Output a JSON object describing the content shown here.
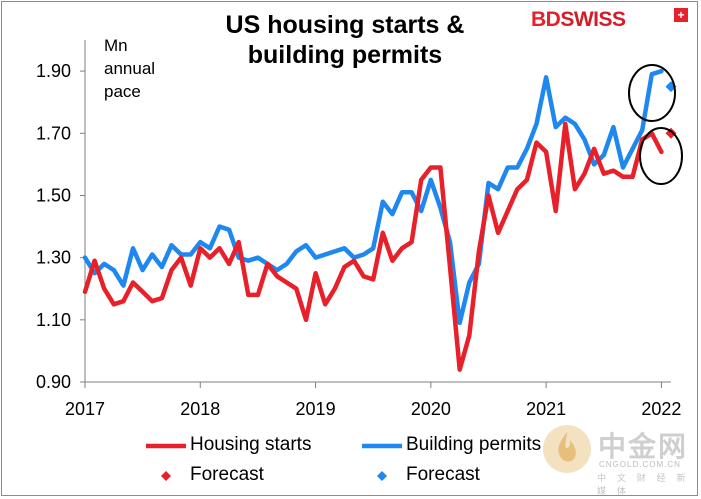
{
  "header": {
    "title_line1": "US housing starts &",
    "title_line2": "building permits",
    "unit_line1": "Mn",
    "unit_line2": "annual",
    "unit_line3": "pace"
  },
  "brand": {
    "bd": "BD",
    "swiss": "SWISS",
    "cross": "+"
  },
  "watermark": {
    "name": "中金网",
    "site": "CNGOLD.COM.CN",
    "tagline": "中 文 财 经 新 媒 体",
    "icon": "flame-coin-icon"
  },
  "colors": {
    "starts": "#e8202a",
    "permits": "#1e88f0",
    "brand": "#e8202a"
  },
  "chart_data": {
    "type": "line",
    "title": "US housing starts & building permits",
    "ylabel": "Mn annual pace",
    "ylim": [
      0.9,
      2.0
    ],
    "yticks": [
      "0.90",
      "1.10",
      "1.30",
      "1.50",
      "1.70",
      "1.90"
    ],
    "xticks": [
      "2017",
      "2018",
      "2019",
      "2020",
      "2021",
      "2022"
    ],
    "xlim": [
      "2017-01",
      "2022-02"
    ],
    "grid": false,
    "legend_position": "bottom",
    "series": [
      {
        "name": "Housing starts",
        "color": "#e8202a",
        "x": [
          "2017-01",
          "2017-02",
          "2017-03",
          "2017-04",
          "2017-05",
          "2017-06",
          "2017-07",
          "2017-08",
          "2017-09",
          "2017-10",
          "2017-11",
          "2017-12",
          "2018-01",
          "2018-02",
          "2018-03",
          "2018-04",
          "2018-05",
          "2018-06",
          "2018-07",
          "2018-08",
          "2018-09",
          "2018-10",
          "2018-11",
          "2018-12",
          "2019-01",
          "2019-02",
          "2019-03",
          "2019-04",
          "2019-05",
          "2019-06",
          "2019-07",
          "2019-08",
          "2019-09",
          "2019-10",
          "2019-11",
          "2019-12",
          "2020-01",
          "2020-02",
          "2020-03",
          "2020-04",
          "2020-05",
          "2020-06",
          "2020-07",
          "2020-08",
          "2020-09",
          "2020-10",
          "2020-11",
          "2020-12",
          "2021-01",
          "2021-02",
          "2021-03",
          "2021-04",
          "2021-05",
          "2021-06",
          "2021-07",
          "2021-08",
          "2021-09",
          "2021-10",
          "2021-11",
          "2021-12",
          "2022-01"
        ],
        "values": [
          1.19,
          1.29,
          1.2,
          1.15,
          1.16,
          1.22,
          1.19,
          1.16,
          1.17,
          1.26,
          1.3,
          1.21,
          1.33,
          1.3,
          1.33,
          1.28,
          1.35,
          1.18,
          1.18,
          1.28,
          1.24,
          1.22,
          1.2,
          1.1,
          1.25,
          1.15,
          1.2,
          1.27,
          1.29,
          1.24,
          1.23,
          1.38,
          1.29,
          1.33,
          1.35,
          1.55,
          1.59,
          1.59,
          1.27,
          0.94,
          1.05,
          1.32,
          1.5,
          1.38,
          1.45,
          1.52,
          1.55,
          1.67,
          1.64,
          1.45,
          1.73,
          1.52,
          1.57,
          1.65,
          1.57,
          1.58,
          1.56,
          1.56,
          1.68,
          1.7,
          1.64
        ],
        "forecast": {
          "x": "2022-02",
          "value": 1.7
        }
      },
      {
        "name": "Building permits",
        "color": "#1e88f0",
        "x": [
          "2017-01",
          "2017-02",
          "2017-03",
          "2017-04",
          "2017-05",
          "2017-06",
          "2017-07",
          "2017-08",
          "2017-09",
          "2017-10",
          "2017-11",
          "2017-12",
          "2018-01",
          "2018-02",
          "2018-03",
          "2018-04",
          "2018-05",
          "2018-06",
          "2018-07",
          "2018-08",
          "2018-09",
          "2018-10",
          "2018-11",
          "2018-12",
          "2019-01",
          "2019-02",
          "2019-03",
          "2019-04",
          "2019-05",
          "2019-06",
          "2019-07",
          "2019-08",
          "2019-09",
          "2019-10",
          "2019-11",
          "2019-12",
          "2020-01",
          "2020-02",
          "2020-03",
          "2020-04",
          "2020-05",
          "2020-06",
          "2020-07",
          "2020-08",
          "2020-09",
          "2020-10",
          "2020-11",
          "2020-12",
          "2021-01",
          "2021-02",
          "2021-03",
          "2021-04",
          "2021-05",
          "2021-06",
          "2021-07",
          "2021-08",
          "2021-09",
          "2021-10",
          "2021-11",
          "2021-12",
          "2022-01"
        ],
        "values": [
          1.3,
          1.25,
          1.28,
          1.26,
          1.21,
          1.33,
          1.26,
          1.31,
          1.27,
          1.34,
          1.31,
          1.31,
          1.35,
          1.33,
          1.4,
          1.39,
          1.3,
          1.29,
          1.3,
          1.28,
          1.26,
          1.28,
          1.32,
          1.34,
          1.3,
          1.31,
          1.32,
          1.33,
          1.3,
          1.31,
          1.33,
          1.48,
          1.44,
          1.51,
          1.51,
          1.45,
          1.55,
          1.46,
          1.35,
          1.09,
          1.22,
          1.28,
          1.54,
          1.52,
          1.59,
          1.59,
          1.65,
          1.73,
          1.88,
          1.72,
          1.75,
          1.73,
          1.68,
          1.6,
          1.63,
          1.72,
          1.59,
          1.65,
          1.71,
          1.89,
          1.9
        ],
        "forecast": {
          "x": "2022-02",
          "value": 1.85
        }
      }
    ],
    "legend": [
      {
        "label": "Housing starts",
        "marker": "line",
        "color": "#e8202a"
      },
      {
        "label": "Building permits",
        "marker": "line",
        "color": "#1e88f0"
      },
      {
        "label": "Forecast",
        "marker": "diamond",
        "color": "#e8202a"
      },
      {
        "label": "Forecast",
        "marker": "diamond",
        "color": "#1e88f0"
      }
    ],
    "annotations": [
      "circle around latest building permits and forecast",
      "circle around latest housing starts and forecast"
    ]
  }
}
